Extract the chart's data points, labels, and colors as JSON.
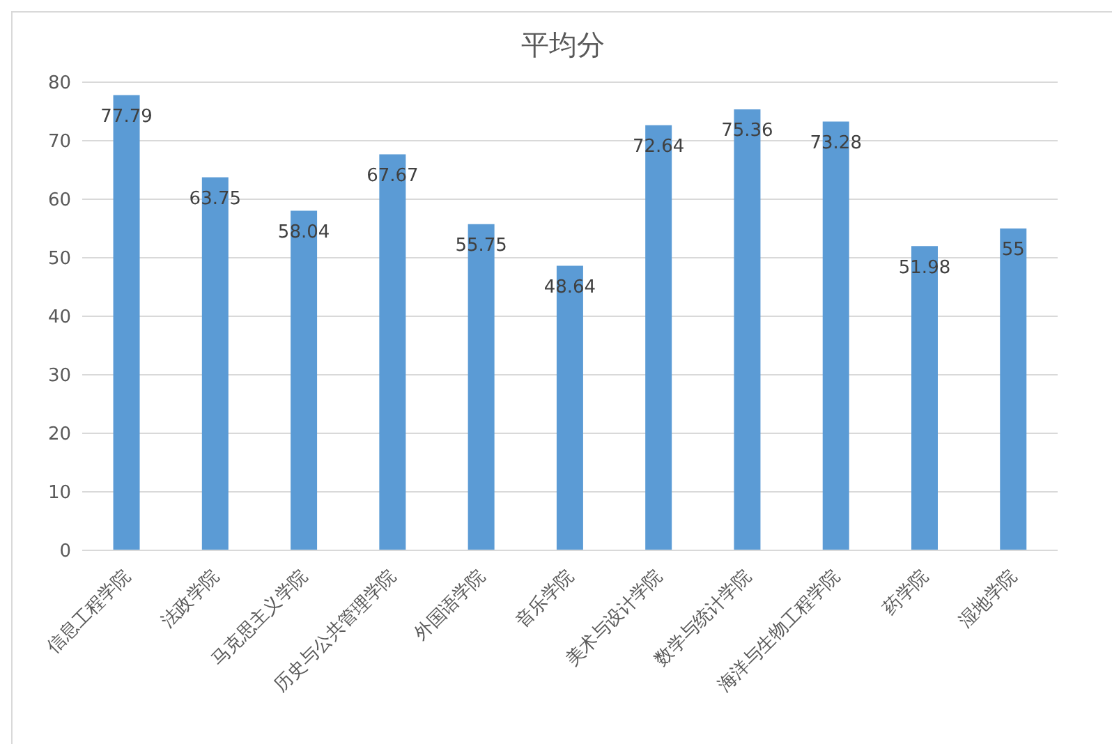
{
  "chart_data": {
    "type": "bar",
    "title": "平均分",
    "categories": [
      "信息工程学院",
      "法政学院",
      "马克思主义学院",
      "历史与公共管理学院",
      "外国语学院",
      "音乐学院",
      "美术与设计学院",
      "数学与统计学院",
      "海洋与生物工程学院",
      "药学院",
      "湿地学院"
    ],
    "values": [
      77.79,
      63.75,
      58.04,
      67.67,
      55.75,
      48.64,
      72.64,
      75.36,
      73.28,
      51.98,
      55
    ],
    "color": "#5b9bd5",
    "ylim": [
      0,
      80
    ],
    "yticks": [
      0,
      10,
      20,
      30,
      40,
      50,
      60,
      70,
      80
    ],
    "grid": "y",
    "data_labels": true
  }
}
